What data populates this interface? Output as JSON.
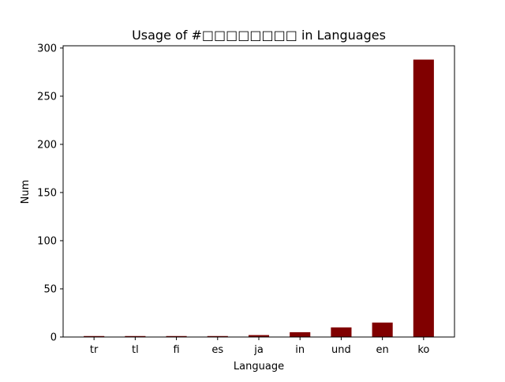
{
  "chart_data": {
    "type": "bar",
    "title": "Usage of #□□□□□□□□ in Languages",
    "xlabel": "Language",
    "ylabel": "Num",
    "categories": [
      "tr",
      "tl",
      "fi",
      "es",
      "ja",
      "in",
      "und",
      "en",
      "ko"
    ],
    "values": [
      1,
      1,
      1,
      1,
      2,
      5,
      10,
      15,
      288
    ],
    "ylim": [
      0,
      302.35
    ],
    "yticks": [
      0,
      50,
      100,
      150,
      200,
      250,
      300
    ],
    "bar_color": "#800000",
    "grid": false,
    "legend": "none"
  }
}
